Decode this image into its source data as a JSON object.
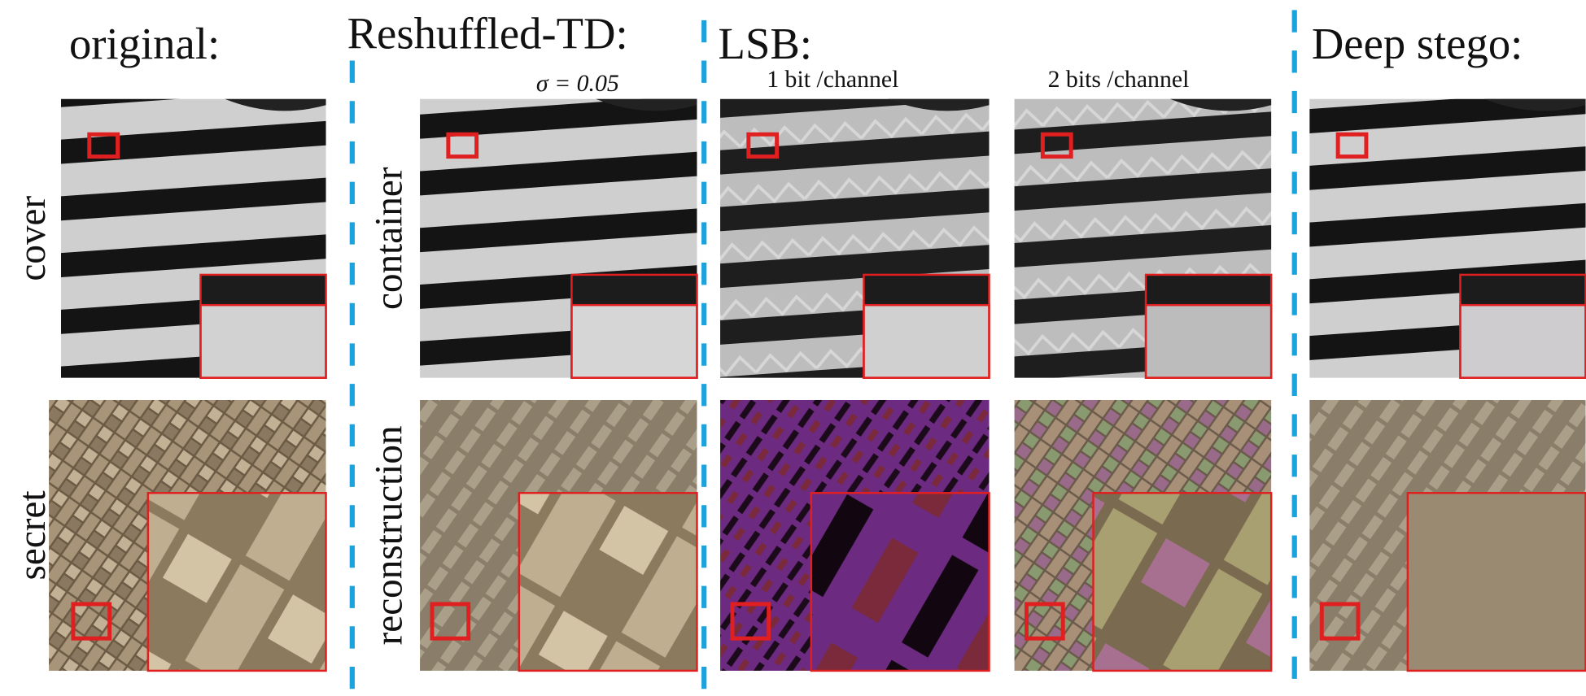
{
  "headers": [
    "original:",
    "Reshuffled-TD:",
    "LSB:",
    "Deep stego:"
  ],
  "subheaders": [
    "σ = 0.05",
    "1 bit /channel",
    "2 bits /channel"
  ],
  "row_labels": [
    "cover",
    "secret",
    "container",
    "reconstruction"
  ]
}
